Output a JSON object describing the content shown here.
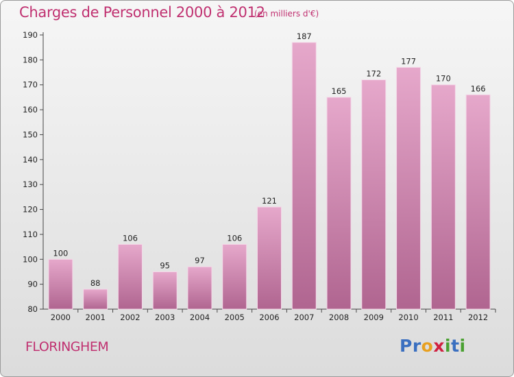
{
  "header": {
    "title": "Charges de Personnel 2000 à 2012",
    "subtitle": "(en milliers d'€)"
  },
  "footer": {
    "commune": "FLORINGHEM",
    "logo": [
      "P",
      "r",
      "o",
      "x",
      "i",
      "t",
      "i"
    ]
  },
  "colors": {
    "title": "#c03070",
    "bar_top": "#e6a8cb",
    "bar_bottom": "#b06590",
    "logo": [
      "#3a6fc0",
      "#3a6fc0",
      "#e8a020",
      "#d02040",
      "#49a030",
      "#3a6fc0",
      "#49a030"
    ]
  },
  "chart_data": {
    "type": "bar",
    "title": "Charges de Personnel 2000 à 2012",
    "subtitle": "(en milliers d'€)",
    "categories": [
      "2000",
      "2001",
      "2002",
      "2003",
      "2004",
      "2005",
      "2006",
      "2007",
      "2008",
      "2009",
      "2010",
      "2011",
      "2012"
    ],
    "values": [
      100,
      88,
      106,
      95,
      97,
      106,
      121,
      187,
      165,
      172,
      177,
      170,
      166
    ],
    "ylim": [
      80,
      190
    ],
    "yticks": [
      80,
      90,
      100,
      110,
      120,
      130,
      140,
      150,
      160,
      170,
      180,
      190
    ],
    "grid": false,
    "legend": "none"
  }
}
